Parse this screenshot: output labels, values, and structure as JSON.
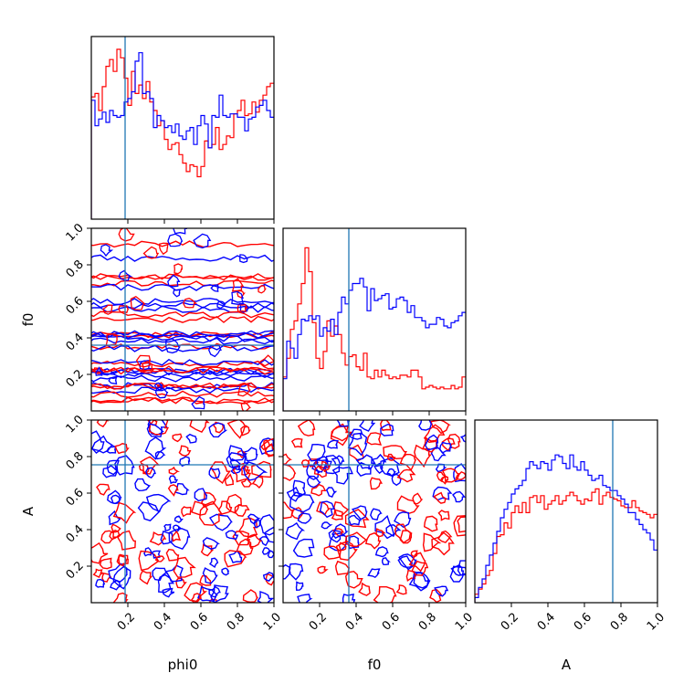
{
  "chart_data": {
    "type": "corner",
    "parameters": [
      "phi0",
      "f0",
      "A"
    ],
    "truths": [
      0.185,
      0.36,
      0.755
    ],
    "axis_range": [
      0,
      1
    ],
    "tick_labels": [
      "0.2",
      "0.4",
      "0.6",
      "0.8",
      "1.0"
    ],
    "series_colors": [
      "#ff0000",
      "#0000ff"
    ],
    "truth_color": "#1f77b4",
    "histograms": [
      {
        "parameter": "phi0",
        "bin_edges_from": 0.0,
        "bin_width": 0.02,
        "series": [
          {
            "color": "#ff0000",
            "counts": [
              0.72,
              0.74,
              0.64,
              0.78,
              0.9,
              0.94,
              0.87,
              1.0,
              0.95,
              0.83,
              0.67,
              0.87,
              0.74,
              0.79,
              0.71,
              0.81,
              0.69,
              0.64,
              0.55,
              0.58,
              0.47,
              0.41,
              0.44,
              0.45,
              0.38,
              0.33,
              0.28,
              0.32,
              0.31,
              0.25,
              0.31,
              0.46,
              0.42,
              0.44,
              0.54,
              0.41,
              0.44,
              0.49,
              0.48,
              0.62,
              0.64,
              0.7,
              0.61,
              0.62,
              0.69,
              0.63,
              0.7,
              0.73,
              0.78,
              0.8
            ]
          },
          {
            "color": "#0000ff",
            "counts": [
              0.7,
              0.55,
              0.59,
              0.63,
              0.57,
              0.64,
              0.61,
              0.6,
              0.61,
              0.69,
              0.71,
              0.75,
              0.93,
              0.98,
              0.74,
              0.75,
              0.71,
              0.54,
              0.61,
              0.58,
              0.54,
              0.55,
              0.51,
              0.56,
              0.49,
              0.47,
              0.52,
              0.54,
              0.44,
              0.55,
              0.61,
              0.56,
              0.42,
              0.61,
              0.6,
              0.73,
              0.61,
              0.6,
              0.62,
              0.62,
              0.6,
              0.6,
              0.52,
              0.59,
              0.6,
              0.66,
              0.67,
              0.7,
              0.64,
              0.6
            ]
          }
        ]
      },
      {
        "parameter": "f0",
        "bin_edges_from": 0.0,
        "bin_width": 0.02,
        "series": [
          {
            "color": "#ff0000",
            "counts": [
              0.2,
              0.31,
              0.48,
              0.53,
              0.63,
              0.75,
              0.96,
              0.82,
              0.52,
              0.31,
              0.25,
              0.35,
              0.53,
              0.44,
              0.5,
              0.45,
              0.34,
              0.27,
              0.32,
              0.33,
              0.26,
              0.24,
              0.34,
              0.2,
              0.19,
              0.24,
              0.2,
              0.24,
              0.21,
              0.19,
              0.2,
              0.19,
              0.21,
              0.21,
              0.2,
              0.24,
              0.24,
              0.2,
              0.13,
              0.14,
              0.15,
              0.14,
              0.13,
              0.14,
              0.13,
              0.13,
              0.15,
              0.13,
              0.14,
              0.2
            ]
          },
          {
            "color": "#0000ff",
            "counts": [
              0.19,
              0.41,
              0.37,
              0.31,
              0.45,
              0.54,
              0.53,
              0.56,
              0.54,
              0.56,
              0.44,
              0.49,
              0.47,
              0.54,
              0.45,
              0.58,
              0.67,
              0.63,
              0.71,
              0.75,
              0.75,
              0.78,
              0.73,
              0.59,
              0.72,
              0.65,
              0.66,
              0.68,
              0.69,
              0.6,
              0.61,
              0.66,
              0.67,
              0.65,
              0.58,
              0.62,
              0.55,
              0.55,
              0.53,
              0.49,
              0.51,
              0.51,
              0.55,
              0.54,
              0.5,
              0.49,
              0.52,
              0.53,
              0.56,
              0.58
            ]
          }
        ]
      },
      {
        "parameter": "A",
        "bin_edges_from": 0.0,
        "bin_width": 0.02,
        "series": [
          {
            "color": "#ff0000",
            "counts": [
              0.05,
              0.08,
              0.11,
              0.16,
              0.19,
              0.29,
              0.39,
              0.4,
              0.47,
              0.44,
              0.53,
              0.57,
              0.53,
              0.59,
              0.53,
              0.62,
              0.63,
              0.59,
              0.63,
              0.55,
              0.58,
              0.6,
              0.63,
              0.58,
              0.6,
              0.63,
              0.65,
              0.63,
              0.6,
              0.58,
              0.61,
              0.6,
              0.65,
              0.67,
              0.58,
              0.63,
              0.65,
              0.62,
              0.61,
              0.6,
              0.57,
              0.56,
              0.56,
              0.6,
              0.56,
              0.54,
              0.53,
              0.52,
              0.5,
              0.52
            ]
          },
          {
            "color": "#0000ff",
            "counts": [
              0.03,
              0.09,
              0.14,
              0.22,
              0.28,
              0.35,
              0.42,
              0.5,
              0.55,
              0.59,
              0.64,
              0.67,
              0.69,
              0.72,
              0.79,
              0.83,
              0.81,
              0.79,
              0.83,
              0.82,
              0.78,
              0.84,
              0.87,
              0.86,
              0.82,
              0.79,
              0.87,
              0.8,
              0.78,
              0.83,
              0.78,
              0.75,
              0.72,
              0.73,
              0.75,
              0.69,
              0.68,
              0.66,
              0.66,
              0.63,
              0.61,
              0.58,
              0.53,
              0.53,
              0.49,
              0.46,
              0.43,
              0.41,
              0.37,
              0.31
            ]
          }
        ]
      }
    ],
    "pairs": [
      {
        "x": "phi0",
        "y": "f0"
      },
      {
        "x": "phi0",
        "y": "A"
      },
      {
        "x": "f0",
        "y": "A"
      }
    ],
    "xlabel_phi0": "phi0",
    "xlabel_f0": "f0",
    "xlabel_A": "A",
    "ylabel_f0": "f0",
    "ylabel_A": "A"
  }
}
